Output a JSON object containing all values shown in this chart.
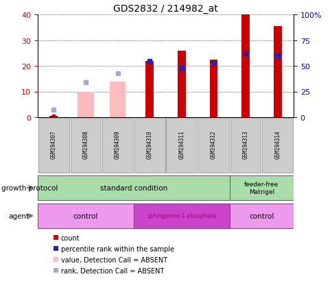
{
  "title": "GDS2832 / 214982_at",
  "samples": [
    "GSM194307",
    "GSM194308",
    "GSM194309",
    "GSM194310",
    "GSM194311",
    "GSM194312",
    "GSM194313",
    "GSM194314"
  ],
  "count_values": [
    0.5,
    0,
    0,
    22,
    26,
    22.5,
    40,
    35.5
  ],
  "percentile_values": [
    0,
    0,
    0,
    55,
    48,
    52.5,
    62,
    60
  ],
  "absent_value_bars": [
    0,
    10,
    14,
    0,
    0,
    0,
    0,
    0
  ],
  "absent_rank_dots": [
    7.5,
    33.75,
    42.5,
    0,
    0,
    0,
    0,
    0
  ],
  "absent_count_dots": [
    0.5,
    0,
    0,
    0,
    0,
    0,
    0,
    0
  ],
  "ylim": [
    0,
    40
  ],
  "ylim_right": [
    0,
    100
  ],
  "yticks_left": [
    0,
    10,
    20,
    30,
    40
  ],
  "yticks_right": [
    0,
    25,
    50,
    75,
    100
  ],
  "ylabel_left_color": "#cc0000",
  "ylabel_right_color": "#0000cc",
  "bar_color_red": "#cc0000",
  "bar_color_pink": "#ffbbbb",
  "dot_color_blue": "#2222bb",
  "dot_color_lightblue": "#aaaacc",
  "growth_label": "growth protocol",
  "agent_label": "agent",
  "bg_color": "#ffffff",
  "sample_box_color": "#cccccc",
  "growth_color": "#aaddaa",
  "agent_control_color": "#ee99ee",
  "agent_sphingo_color": "#cc44cc",
  "agent_sphingo_text_color": "#aa0066",
  "legend_items": [
    {
      "label": "count",
      "color": "#cc0000"
    },
    {
      "label": "percentile rank within the sample",
      "color": "#2222bb"
    },
    {
      "label": "value, Detection Call = ABSENT",
      "color": "#ffbbbb"
    },
    {
      "label": "rank, Detection Call = ABSENT",
      "color": "#aaaacc"
    }
  ]
}
